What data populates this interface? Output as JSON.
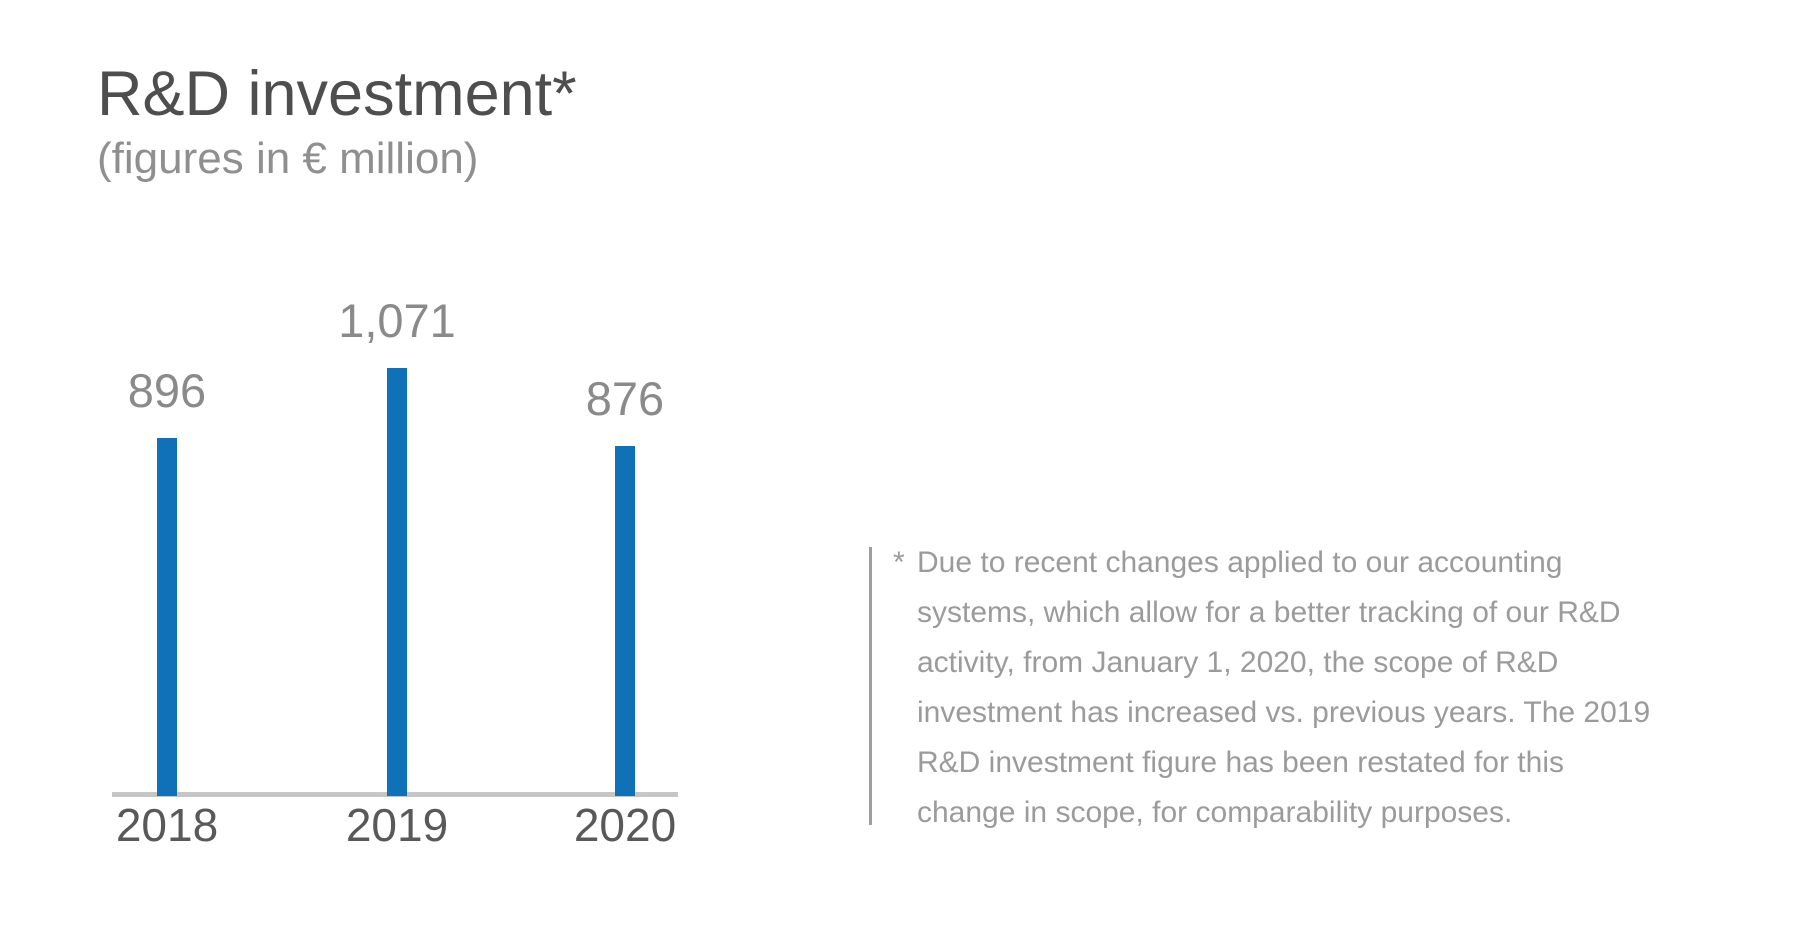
{
  "chart": {
    "title": "R&D investment*",
    "subtitle": "(figures in € million)"
  },
  "chart_data": {
    "type": "bar",
    "title": "R&D investment*",
    "subtitle": "(figures in € million)",
    "unit": "€ million",
    "categories": [
      "2018",
      "2019",
      "2020"
    ],
    "values": [
      896,
      1071,
      876
    ],
    "value_labels": [
      "896",
      "1,071",
      "876"
    ],
    "xlabel": "",
    "ylabel": "",
    "grid": false,
    "legend": false,
    "value_label_position": "above-bars",
    "bar_color": "#1071b8",
    "axis_line_color": "#c6c6c6"
  },
  "footnote": {
    "marker": "*",
    "lines": [
      "Due to recent changes applied to our accounting",
      "systems, which allow for a better tracking of our R&D",
      "activity, from January 1, 2020, the scope of R&D",
      "investment has increased vs. previous years. The 2019",
      "R&D investment figure has been restated for this",
      "change in scope, for comparability purposes."
    ]
  },
  "colors": {
    "bar_blue": "#1071b8",
    "title_gray": "#4e4e4e",
    "subtitle_gray": "#8f8f8f",
    "value_label_gray": "#8a8a8a",
    "year_label_gray": "#595959",
    "axis_gray": "#c6c6c6",
    "footnote_gray": "#9b9b9b"
  }
}
